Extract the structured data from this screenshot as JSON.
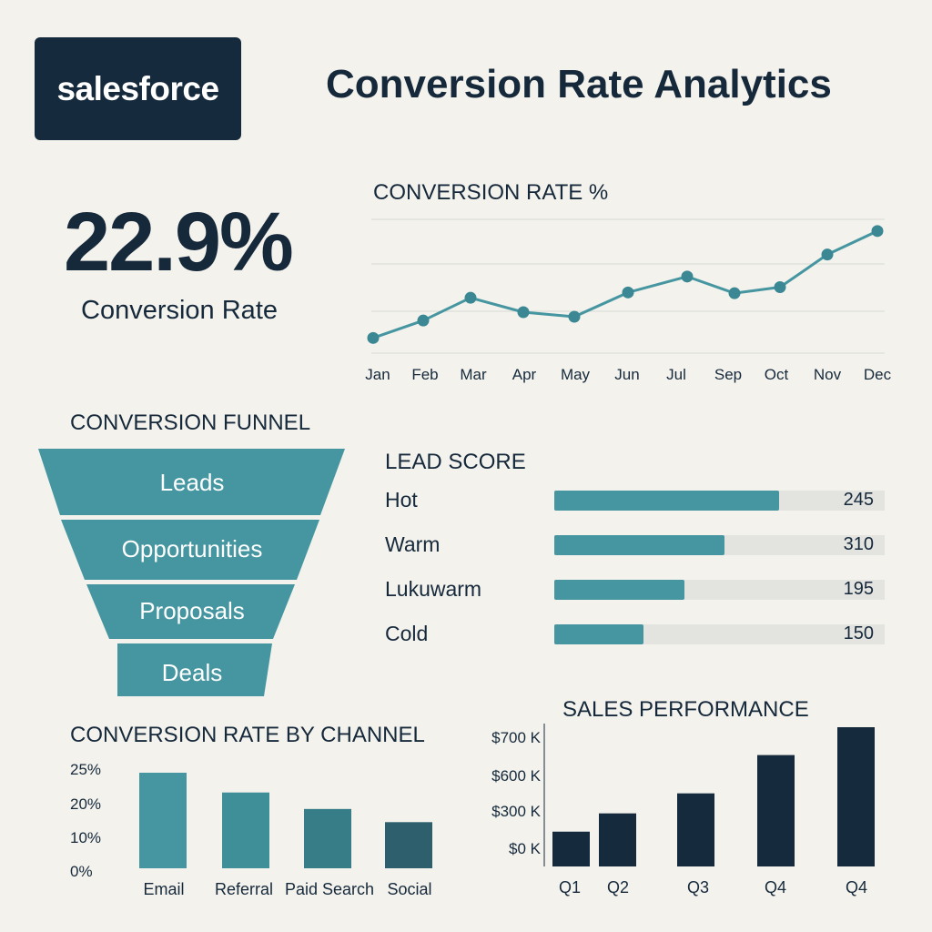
{
  "header": {
    "logo_text": "salesforce",
    "title": "Conversion Rate Analytics"
  },
  "kpi": {
    "value": "22.9%",
    "label": "Conversion Rate"
  },
  "colors": {
    "background": "#f4f2ed",
    "navy": "#15293b",
    "teal": "#4596a0",
    "teal_dark": "#3b8894",
    "track": "#e3e3e0"
  },
  "chart_data": [
    {
      "type": "line",
      "title": "CONVERSION RATE %",
      "categories": [
        "Jan",
        "Feb",
        "Mar",
        "Apr",
        "May",
        "Jun",
        "Jul",
        "Sep",
        "Oct",
        "Nov",
        "Dec"
      ],
      "series": [
        {
          "values": [
            12.0,
            14.3,
            17.3,
            15.4,
            14.8,
            18.0,
            20.1,
            17.9,
            18.7,
            23.0,
            26.1
          ]
        }
      ],
      "ylim": [
        10,
        28
      ],
      "grid": true
    },
    {
      "type": "funnel",
      "title": "CONVERSION FUNNEL",
      "categories": [
        "Leads",
        "Opportunities",
        "Proposals",
        "Deals"
      ]
    },
    {
      "type": "bar",
      "orientation": "horizontal",
      "title": "LEAD SCORE",
      "categories": [
        "Hot",
        "Warm",
        "Lukuwarm",
        "Cold"
      ],
      "values": [
        245,
        310,
        195,
        150
      ],
      "value_labels": [
        "245",
        "310",
        "195",
        "150"
      ],
      "fill_fractions": [
        0.68,
        0.515,
        0.395,
        0.27
      ]
    },
    {
      "type": "bar",
      "title": "CONVERSION RATE BY CHANNEL",
      "categories": [
        "Email",
        "Referral",
        "Paid Search",
        "Social"
      ],
      "values": [
        29,
        23,
        18,
        14
      ],
      "ytick_labels": [
        "25%",
        "20%",
        "10%",
        "0%"
      ],
      "bar_colors": [
        "#4596a0",
        "#3f8f99",
        "#377d87",
        "#2d5f6c"
      ]
    },
    {
      "type": "bar",
      "title": "SALES PERFORMANCE",
      "categories": [
        "Q1",
        "Q2",
        "Q3",
        "Q4",
        "Q4"
      ],
      "values": [
        200,
        305,
        420,
        640,
        800
      ],
      "ytick_labels": [
        "$700 K",
        "$600 K",
        "$300 K",
        "$0 K"
      ],
      "bar_color": "#152b3d"
    }
  ]
}
